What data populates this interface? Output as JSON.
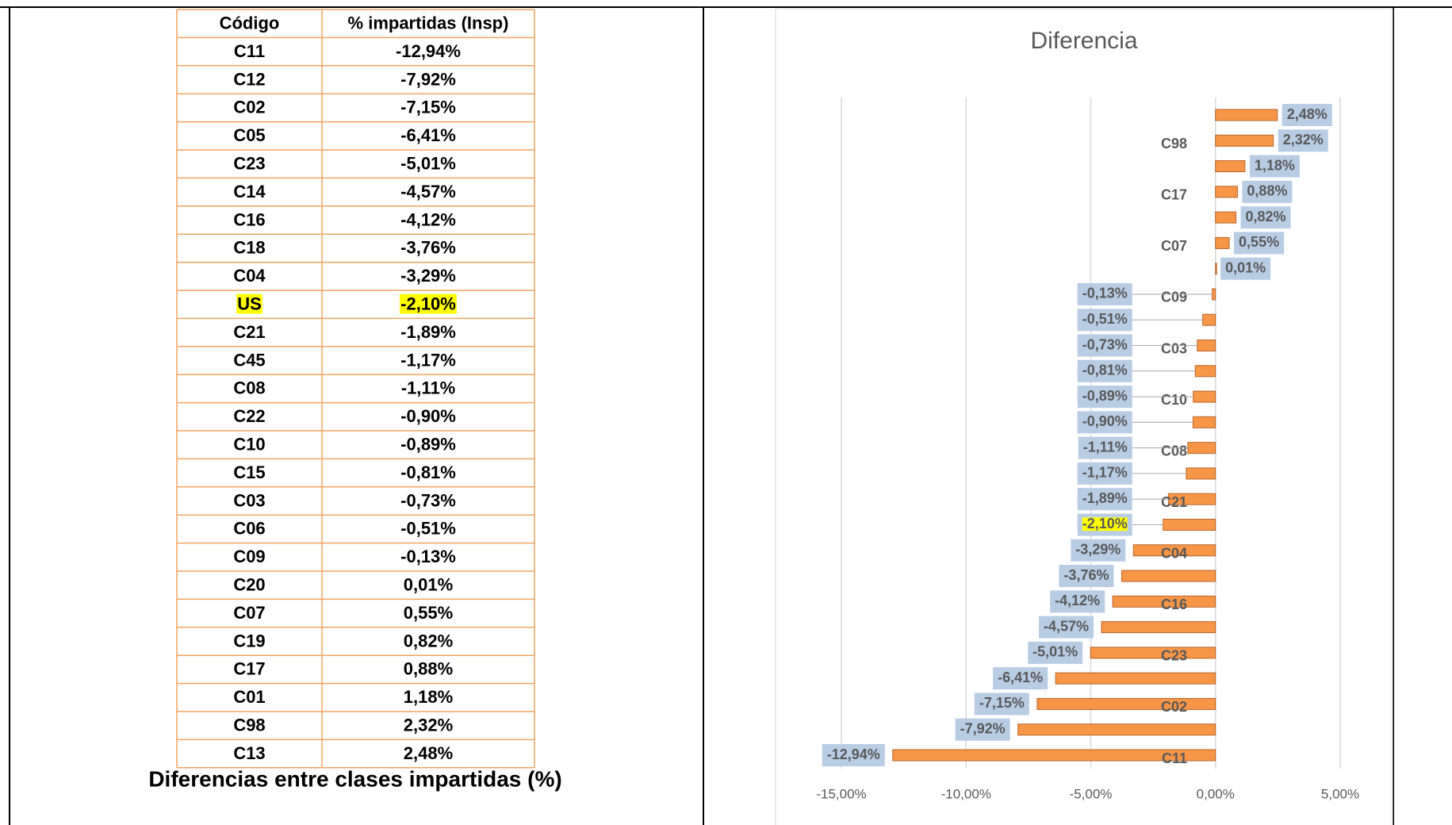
{
  "table": {
    "header": [
      "Código",
      "% impartidas (Insp)"
    ],
    "rows": [
      [
        "C11",
        "-12,94%"
      ],
      [
        "C12",
        "-7,92%"
      ],
      [
        "C02",
        "-7,15%"
      ],
      [
        "C05",
        "-6,41%"
      ],
      [
        "C23",
        "-5,01%"
      ],
      [
        "C14",
        "-4,57%"
      ],
      [
        "C16",
        "-4,12%"
      ],
      [
        "C18",
        "-3,76%"
      ],
      [
        "C04",
        "-3,29%"
      ],
      [
        "US",
        "-2,10%"
      ],
      [
        "C21",
        "-1,89%"
      ],
      [
        "C45",
        "-1,17%"
      ],
      [
        "C08",
        "-1,11%"
      ],
      [
        "C22",
        "-0,90%"
      ],
      [
        "C10",
        "-0,89%"
      ],
      [
        "C15",
        "-0,81%"
      ],
      [
        "C03",
        "-0,73%"
      ],
      [
        "C06",
        "-0,51%"
      ],
      [
        "C09",
        "-0,13%"
      ],
      [
        "C20",
        "0,01%"
      ],
      [
        "C07",
        "0,55%"
      ],
      [
        "C19",
        "0,82%"
      ],
      [
        "C17",
        "0,88%"
      ],
      [
        "C01",
        "1,18%"
      ],
      [
        "C98",
        "2,32%"
      ],
      [
        "C13",
        "2,48%"
      ]
    ],
    "highlight_row": 9,
    "highlight_color": "#ffff00",
    "border_color": "#f4a460",
    "caption": "Diferencias entre clases impartidas (%)"
  },
  "chart_data": {
    "type": "barh",
    "title": "Diferencia",
    "categories": [
      "C11",
      null,
      "C02",
      null,
      "C23",
      null,
      "C16",
      null,
      "C04",
      null,
      "C21",
      null,
      "C08",
      null,
      "C10",
      null,
      "C03",
      null,
      "C09",
      null,
      "C07",
      null,
      "C17",
      null,
      "C98",
      null
    ],
    "values": [
      -12.94,
      -7.92,
      -7.15,
      -6.41,
      -5.01,
      -4.57,
      -4.12,
      -3.76,
      -3.29,
      -2.1,
      -1.89,
      -1.17,
      -1.11,
      -0.9,
      -0.89,
      -0.81,
      -0.73,
      -0.51,
      -0.13,
      0.01,
      0.55,
      0.82,
      0.88,
      1.18,
      2.32,
      2.48
    ],
    "value_labels": [
      "-12,94%",
      "-7,92%",
      "-7,15%",
      "-6,41%",
      "-5,01%",
      "-4,57%",
      "-4,12%",
      "-3,76%",
      "-3,29%",
      "-2,10%",
      "-1,89%",
      "-1,17%",
      "-1,11%",
      "-0,90%",
      "-0,89%",
      "-0,81%",
      "-0,73%",
      "-0,51%",
      "-0,13%",
      "0,01%",
      "0,55%",
      "0,82%",
      "0,88%",
      "1,18%",
      "2,32%",
      "2,48%"
    ],
    "color": "#f79646",
    "label_box_color": "#b8cce4",
    "highlight_index": 9,
    "highlight_color": "#ffff00",
    "xlim": [
      -15,
      5
    ],
    "xticks": [
      {
        "value": -15,
        "label": "-15,00%"
      },
      {
        "value": -10,
        "label": "-10,00%"
      },
      {
        "value": -5,
        "label": "-5,00%"
      },
      {
        "value": 0,
        "label": "0,00%"
      },
      {
        "value": 5,
        "label": "5,00%"
      }
    ],
    "grid": true
  }
}
